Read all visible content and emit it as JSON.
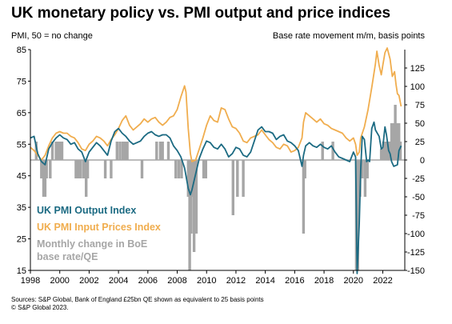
{
  "title": "UK monetary policy vs. PMI output and price indices",
  "left_axis_label": "PMI, 50 = no change",
  "right_axis_label": "Base rate movement m/m, basis points",
  "sources": [
    "Sources: S&P Global, Bank of England £25bn QE shown as equivalent to 25 basis points",
    "© S&P Global 2023."
  ],
  "legend": {
    "output": "UK PMI Output Index",
    "prices": "UK PMI Input Prices Index",
    "policy_line1": "Monthly change in BoE",
    "policy_line2": "base rate/QE"
  },
  "colors": {
    "output": "#1b6a82",
    "prices": "#f0ad4e",
    "policy": "#a6a6a6",
    "zero_line": "#a6a6a6"
  },
  "chart_data": {
    "type": "line",
    "x_range": [
      1998,
      2023.5
    ],
    "x_ticks": [
      "1998",
      "2000",
      "2002",
      "2004",
      "2006",
      "2008",
      "2010",
      "2012",
      "2014",
      "2016",
      "2018",
      "2020",
      "2022"
    ],
    "left_axis": {
      "range": [
        15,
        85
      ],
      "ticks": [
        15,
        25,
        35,
        45,
        55,
        65,
        75,
        85
      ]
    },
    "right_axis": {
      "range": [
        -150,
        150
      ],
      "ticks": [
        -150,
        -125,
        -100,
        -75,
        -50,
        -25,
        0,
        25,
        50,
        75,
        100,
        125
      ]
    },
    "series": [
      {
        "name": "UK PMI Output Index",
        "axis": "left",
        "points": [
          [
            1998.0,
            57.0
          ],
          [
            1998.25,
            57.5
          ],
          [
            1998.5,
            52.0
          ],
          [
            1998.75,
            49.5
          ],
          [
            1999.0,
            48.5
          ],
          [
            1999.25,
            53.5
          ],
          [
            1999.5,
            55.5
          ],
          [
            1999.75,
            57.0
          ],
          [
            2000.0,
            58.0
          ],
          [
            2000.25,
            57.0
          ],
          [
            2000.5,
            56.5
          ],
          [
            2000.75,
            55.0
          ],
          [
            2001.0,
            55.5
          ],
          [
            2001.25,
            53.5
          ],
          [
            2001.5,
            52.5
          ],
          [
            2001.75,
            49.5
          ],
          [
            2002.0,
            52.5
          ],
          [
            2002.25,
            54.0
          ],
          [
            2002.5,
            55.5
          ],
          [
            2002.75,
            54.5
          ],
          [
            2003.0,
            53.0
          ],
          [
            2003.25,
            51.5
          ],
          [
            2003.5,
            56.0
          ],
          [
            2003.75,
            59.0
          ],
          [
            2004.0,
            60.0
          ],
          [
            2004.25,
            58.5
          ],
          [
            2004.5,
            57.5
          ],
          [
            2004.75,
            56.0
          ],
          [
            2005.0,
            55.0
          ],
          [
            2005.25,
            55.5
          ],
          [
            2005.5,
            56.0
          ],
          [
            2005.75,
            57.5
          ],
          [
            2006.0,
            58.5
          ],
          [
            2006.25,
            59.0
          ],
          [
            2006.5,
            58.0
          ],
          [
            2006.75,
            57.5
          ],
          [
            2007.0,
            58.0
          ],
          [
            2007.25,
            58.0
          ],
          [
            2007.5,
            57.0
          ],
          [
            2007.75,
            54.5
          ],
          [
            2008.0,
            53.0
          ],
          [
            2008.25,
            51.0
          ],
          [
            2008.5,
            47.5
          ],
          [
            2008.75,
            41.0
          ],
          [
            2008.9,
            39.0
          ],
          [
            2009.0,
            40.5
          ],
          [
            2009.25,
            45.5
          ],
          [
            2009.5,
            50.5
          ],
          [
            2009.75,
            53.5
          ],
          [
            2010.0,
            56.0
          ],
          [
            2010.25,
            55.5
          ],
          [
            2010.5,
            54.0
          ],
          [
            2010.75,
            53.5
          ],
          [
            2011.0,
            55.0
          ],
          [
            2011.25,
            53.5
          ],
          [
            2011.5,
            51.0
          ],
          [
            2011.75,
            52.0
          ],
          [
            2012.0,
            54.0
          ],
          [
            2012.25,
            53.5
          ],
          [
            2012.5,
            51.5
          ],
          [
            2012.75,
            51.0
          ],
          [
            2013.0,
            52.5
          ],
          [
            2013.25,
            56.0
          ],
          [
            2013.5,
            59.5
          ],
          [
            2013.75,
            60.5
          ],
          [
            2014.0,
            59.0
          ],
          [
            2014.25,
            59.0
          ],
          [
            2014.5,
            58.5
          ],
          [
            2014.75,
            56.5
          ],
          [
            2015.0,
            57.5
          ],
          [
            2015.25,
            58.0
          ],
          [
            2015.5,
            56.0
          ],
          [
            2015.75,
            55.5
          ],
          [
            2016.0,
            54.5
          ],
          [
            2016.25,
            53.0
          ],
          [
            2016.5,
            48.0
          ],
          [
            2016.6,
            51.5
          ],
          [
            2016.75,
            54.5
          ],
          [
            2017.0,
            55.5
          ],
          [
            2017.25,
            54.5
          ],
          [
            2017.5,
            54.0
          ],
          [
            2017.75,
            55.0
          ],
          [
            2018.0,
            54.0
          ],
          [
            2018.25,
            53.5
          ],
          [
            2018.5,
            54.5
          ],
          [
            2018.75,
            52.5
          ],
          [
            2019.0,
            51.0
          ],
          [
            2019.25,
            50.5
          ],
          [
            2019.5,
            50.0
          ],
          [
            2019.75,
            49.5
          ],
          [
            2020.0,
            52.5
          ],
          [
            2020.15,
            51.0
          ],
          [
            2020.25,
            14.0
          ],
          [
            2020.4,
            30.0
          ],
          [
            2020.5,
            47.0
          ],
          [
            2020.6,
            57.5
          ],
          [
            2020.75,
            56.5
          ],
          [
            2020.9,
            49.5
          ],
          [
            2021.0,
            50.0
          ],
          [
            2021.1,
            49.5
          ],
          [
            2021.25,
            60.0
          ],
          [
            2021.4,
            62.0
          ],
          [
            2021.5,
            59.5
          ],
          [
            2021.75,
            57.5
          ],
          [
            2021.9,
            53.5
          ],
          [
            2022.0,
            54.0
          ],
          [
            2022.15,
            60.5
          ],
          [
            2022.25,
            58.0
          ],
          [
            2022.4,
            53.0
          ],
          [
            2022.5,
            52.0
          ],
          [
            2022.6,
            49.5
          ],
          [
            2022.75,
            48.0
          ],
          [
            2023.0,
            48.5
          ],
          [
            2023.1,
            53.0
          ],
          [
            2023.25,
            54.5
          ]
        ]
      },
      {
        "name": "UK PMI Input Prices Index",
        "axis": "left",
        "points": [
          [
            1998.0,
            54.0
          ],
          [
            1998.25,
            53.0
          ],
          [
            1998.5,
            51.5
          ],
          [
            1998.75,
            50.0
          ],
          [
            1999.0,
            51.5
          ],
          [
            1999.25,
            54.5
          ],
          [
            1999.5,
            57.0
          ],
          [
            1999.75,
            58.5
          ],
          [
            2000.0,
            59.0
          ],
          [
            2000.25,
            58.5
          ],
          [
            2000.5,
            58.5
          ],
          [
            2000.75,
            57.5
          ],
          [
            2001.0,
            57.0
          ],
          [
            2001.25,
            55.5
          ],
          [
            2001.5,
            53.5
          ],
          [
            2001.75,
            53.0
          ],
          [
            2002.0,
            55.0
          ],
          [
            2002.25,
            56.0
          ],
          [
            2002.5,
            57.5
          ],
          [
            2002.75,
            57.0
          ],
          [
            2003.0,
            56.0
          ],
          [
            2003.25,
            54.5
          ],
          [
            2003.5,
            56.5
          ],
          [
            2003.75,
            58.0
          ],
          [
            2004.0,
            60.0
          ],
          [
            2004.25,
            62.5
          ],
          [
            2004.5,
            64.0
          ],
          [
            2004.75,
            61.0
          ],
          [
            2005.0,
            59.5
          ],
          [
            2005.25,
            60.5
          ],
          [
            2005.5,
            61.5
          ],
          [
            2005.75,
            63.0
          ],
          [
            2006.0,
            62.0
          ],
          [
            2006.25,
            63.0
          ],
          [
            2006.5,
            63.5
          ],
          [
            2006.75,
            62.0
          ],
          [
            2007.0,
            61.0
          ],
          [
            2007.25,
            62.0
          ],
          [
            2007.5,
            63.5
          ],
          [
            2007.75,
            64.0
          ],
          [
            2008.0,
            66.0
          ],
          [
            2008.25,
            70.0
          ],
          [
            2008.5,
            73.5
          ],
          [
            2008.6,
            71.5
          ],
          [
            2008.75,
            60.0
          ],
          [
            2008.9,
            52.0
          ],
          [
            2009.0,
            49.5
          ],
          [
            2009.25,
            50.0
          ],
          [
            2009.5,
            53.5
          ],
          [
            2009.75,
            57.0
          ],
          [
            2010.0,
            61.0
          ],
          [
            2010.25,
            64.0
          ],
          [
            2010.5,
            62.5
          ],
          [
            2010.75,
            62.0
          ],
          [
            2011.0,
            66.5
          ],
          [
            2011.25,
            66.0
          ],
          [
            2011.5,
            63.0
          ],
          [
            2011.75,
            60.5
          ],
          [
            2012.0,
            60.0
          ],
          [
            2012.25,
            58.5
          ],
          [
            2012.5,
            56.0
          ],
          [
            2012.75,
            55.5
          ],
          [
            2013.0,
            57.0
          ],
          [
            2013.25,
            57.5
          ],
          [
            2013.5,
            58.0
          ],
          [
            2013.75,
            59.5
          ],
          [
            2014.0,
            58.0
          ],
          [
            2014.25,
            56.5
          ],
          [
            2014.5,
            55.5
          ],
          [
            2014.75,
            54.0
          ],
          [
            2015.0,
            53.5
          ],
          [
            2015.25,
            55.0
          ],
          [
            2015.5,
            54.5
          ],
          [
            2015.75,
            52.5
          ],
          [
            2016.0,
            53.0
          ],
          [
            2016.25,
            54.0
          ],
          [
            2016.5,
            57.0
          ],
          [
            2016.6,
            62.0
          ],
          [
            2016.75,
            65.0
          ],
          [
            2017.0,
            64.0
          ],
          [
            2017.25,
            63.0
          ],
          [
            2017.5,
            62.0
          ],
          [
            2017.75,
            63.0
          ],
          [
            2018.0,
            61.5
          ],
          [
            2018.25,
            61.0
          ],
          [
            2018.5,
            60.0
          ],
          [
            2018.75,
            59.5
          ],
          [
            2019.0,
            59.0
          ],
          [
            2019.25,
            58.5
          ],
          [
            2019.5,
            57.0
          ],
          [
            2019.75,
            56.0
          ],
          [
            2020.0,
            57.0
          ],
          [
            2020.15,
            55.0
          ],
          [
            2020.25,
            51.5
          ],
          [
            2020.4,
            52.5
          ],
          [
            2020.5,
            57.0
          ],
          [
            2020.75,
            60.5
          ],
          [
            2021.0,
            66.0
          ],
          [
            2021.25,
            73.0
          ],
          [
            2021.5,
            80.5
          ],
          [
            2021.6,
            84.5
          ],
          [
            2021.75,
            80.0
          ],
          [
            2021.9,
            77.0
          ],
          [
            2022.0,
            80.0
          ],
          [
            2022.15,
            84.0
          ],
          [
            2022.3,
            85.5
          ],
          [
            2022.5,
            82.0
          ],
          [
            2022.65,
            76.5
          ],
          [
            2022.8,
            78.0
          ],
          [
            2022.9,
            74.0
          ],
          [
            2023.0,
            71.0
          ],
          [
            2023.1,
            70.5
          ],
          [
            2023.25,
            67.0
          ]
        ]
      },
      {
        "name": "Monthly change in BoE base rate/QE",
        "axis": "right",
        "type": "bar",
        "points": [
          [
            1998.4,
            25
          ],
          [
            1998.75,
            -25
          ],
          [
            1998.9,
            -50
          ],
          [
            1999.0,
            -50
          ],
          [
            1999.1,
            -25
          ],
          [
            1999.35,
            -25
          ],
          [
            1999.5,
            25
          ],
          [
            1999.75,
            25
          ],
          [
            1999.9,
            25
          ],
          [
            2000.05,
            25
          ],
          [
            2000.15,
            25
          ],
          [
            2001.1,
            -25
          ],
          [
            2001.25,
            -25
          ],
          [
            2001.4,
            -25
          ],
          [
            2001.6,
            -25
          ],
          [
            2001.7,
            -25
          ],
          [
            2001.8,
            -50
          ],
          [
            2001.9,
            -25
          ],
          [
            2003.1,
            -25
          ],
          [
            2003.5,
            -25
          ],
          [
            2003.9,
            25
          ],
          [
            2004.1,
            25
          ],
          [
            2004.3,
            25
          ],
          [
            2004.45,
            25
          ],
          [
            2004.6,
            25
          ],
          [
            2005.6,
            -25
          ],
          [
            2006.6,
            25
          ],
          [
            2006.85,
            25
          ],
          [
            2007.0,
            25
          ],
          [
            2007.4,
            25
          ],
          [
            2007.9,
            -25
          ],
          [
            2008.1,
            -25
          ],
          [
            2008.3,
            -25
          ],
          [
            2008.75,
            -50
          ],
          [
            2008.85,
            -150
          ],
          [
            2008.95,
            -100
          ],
          [
            2009.05,
            -50
          ],
          [
            2009.15,
            -125
          ],
          [
            2009.3,
            -100
          ],
          [
            2009.8,
            -25
          ],
          [
            2009.95,
            -25
          ],
          [
            2011.8,
            -75
          ],
          [
            2012.1,
            -50
          ],
          [
            2012.5,
            -50
          ],
          [
            2016.6,
            -100
          ],
          [
            2016.7,
            -25
          ],
          [
            2017.9,
            25
          ],
          [
            2018.6,
            25
          ],
          [
            2020.2,
            -150
          ],
          [
            2020.3,
            -150
          ],
          [
            2020.45,
            -50
          ],
          [
            2020.6,
            -25
          ],
          [
            2020.8,
            -50
          ],
          [
            2020.95,
            -25
          ],
          [
            2021.9,
            15
          ],
          [
            2022.05,
            25
          ],
          [
            2022.15,
            25
          ],
          [
            2022.3,
            25
          ],
          [
            2022.45,
            25
          ],
          [
            2022.6,
            50
          ],
          [
            2022.75,
            50
          ],
          [
            2022.85,
            75
          ],
          [
            2022.95,
            50
          ],
          [
            2023.1,
            50
          ],
          [
            2023.2,
            25
          ]
        ]
      }
    ],
    "grid": false
  }
}
